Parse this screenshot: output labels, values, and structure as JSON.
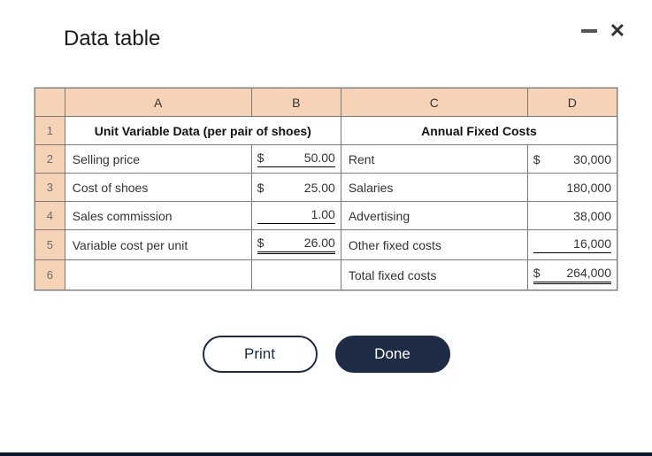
{
  "title": "Data table",
  "colors": {
    "header_bg": "#f6d2b6",
    "border": "#7a7a7a",
    "outer_border": "#c9c9c9",
    "btn_primary": "#1d2b45",
    "modal_bottom": "#0a1830"
  },
  "columns": [
    "A",
    "B",
    "C",
    "D"
  ],
  "row_numbers": [
    "1",
    "2",
    "3",
    "4",
    "5",
    "6"
  ],
  "section_headers": {
    "left": "Unit Variable Data (per pair of shoes)",
    "right": "Annual Fixed Costs"
  },
  "rows": [
    {
      "left_label": "Selling price",
      "left_currency": "$",
      "left_value": "50.00",
      "left_style": "underline-single",
      "right_label": "Rent",
      "right_currency": "$",
      "right_value": "30,000",
      "right_style": ""
    },
    {
      "left_label": "Cost of shoes",
      "left_currency": "$",
      "left_value": "25.00",
      "left_style": "",
      "right_label": "Salaries",
      "right_currency": "",
      "right_value": "180,000",
      "right_style": ""
    },
    {
      "left_label": "Sales commission",
      "left_currency": "",
      "left_value": "1.00",
      "left_style": "underline-single",
      "right_label": "Advertising",
      "right_currency": "",
      "right_value": "38,000",
      "right_style": ""
    },
    {
      "left_label": "Variable cost per unit",
      "left_currency": "$",
      "left_value": "26.00",
      "left_style": "underline-double",
      "right_label": "Other fixed costs",
      "right_currency": "",
      "right_value": "16,000",
      "right_style": "underline-single"
    },
    {
      "left_label": "",
      "left_currency": "",
      "left_value": "",
      "left_style": "",
      "right_label": "Total fixed costs",
      "right_currency": "$",
      "right_value": "264,000",
      "right_style": "underline-double"
    }
  ],
  "buttons": {
    "print": "Print",
    "done": "Done"
  }
}
